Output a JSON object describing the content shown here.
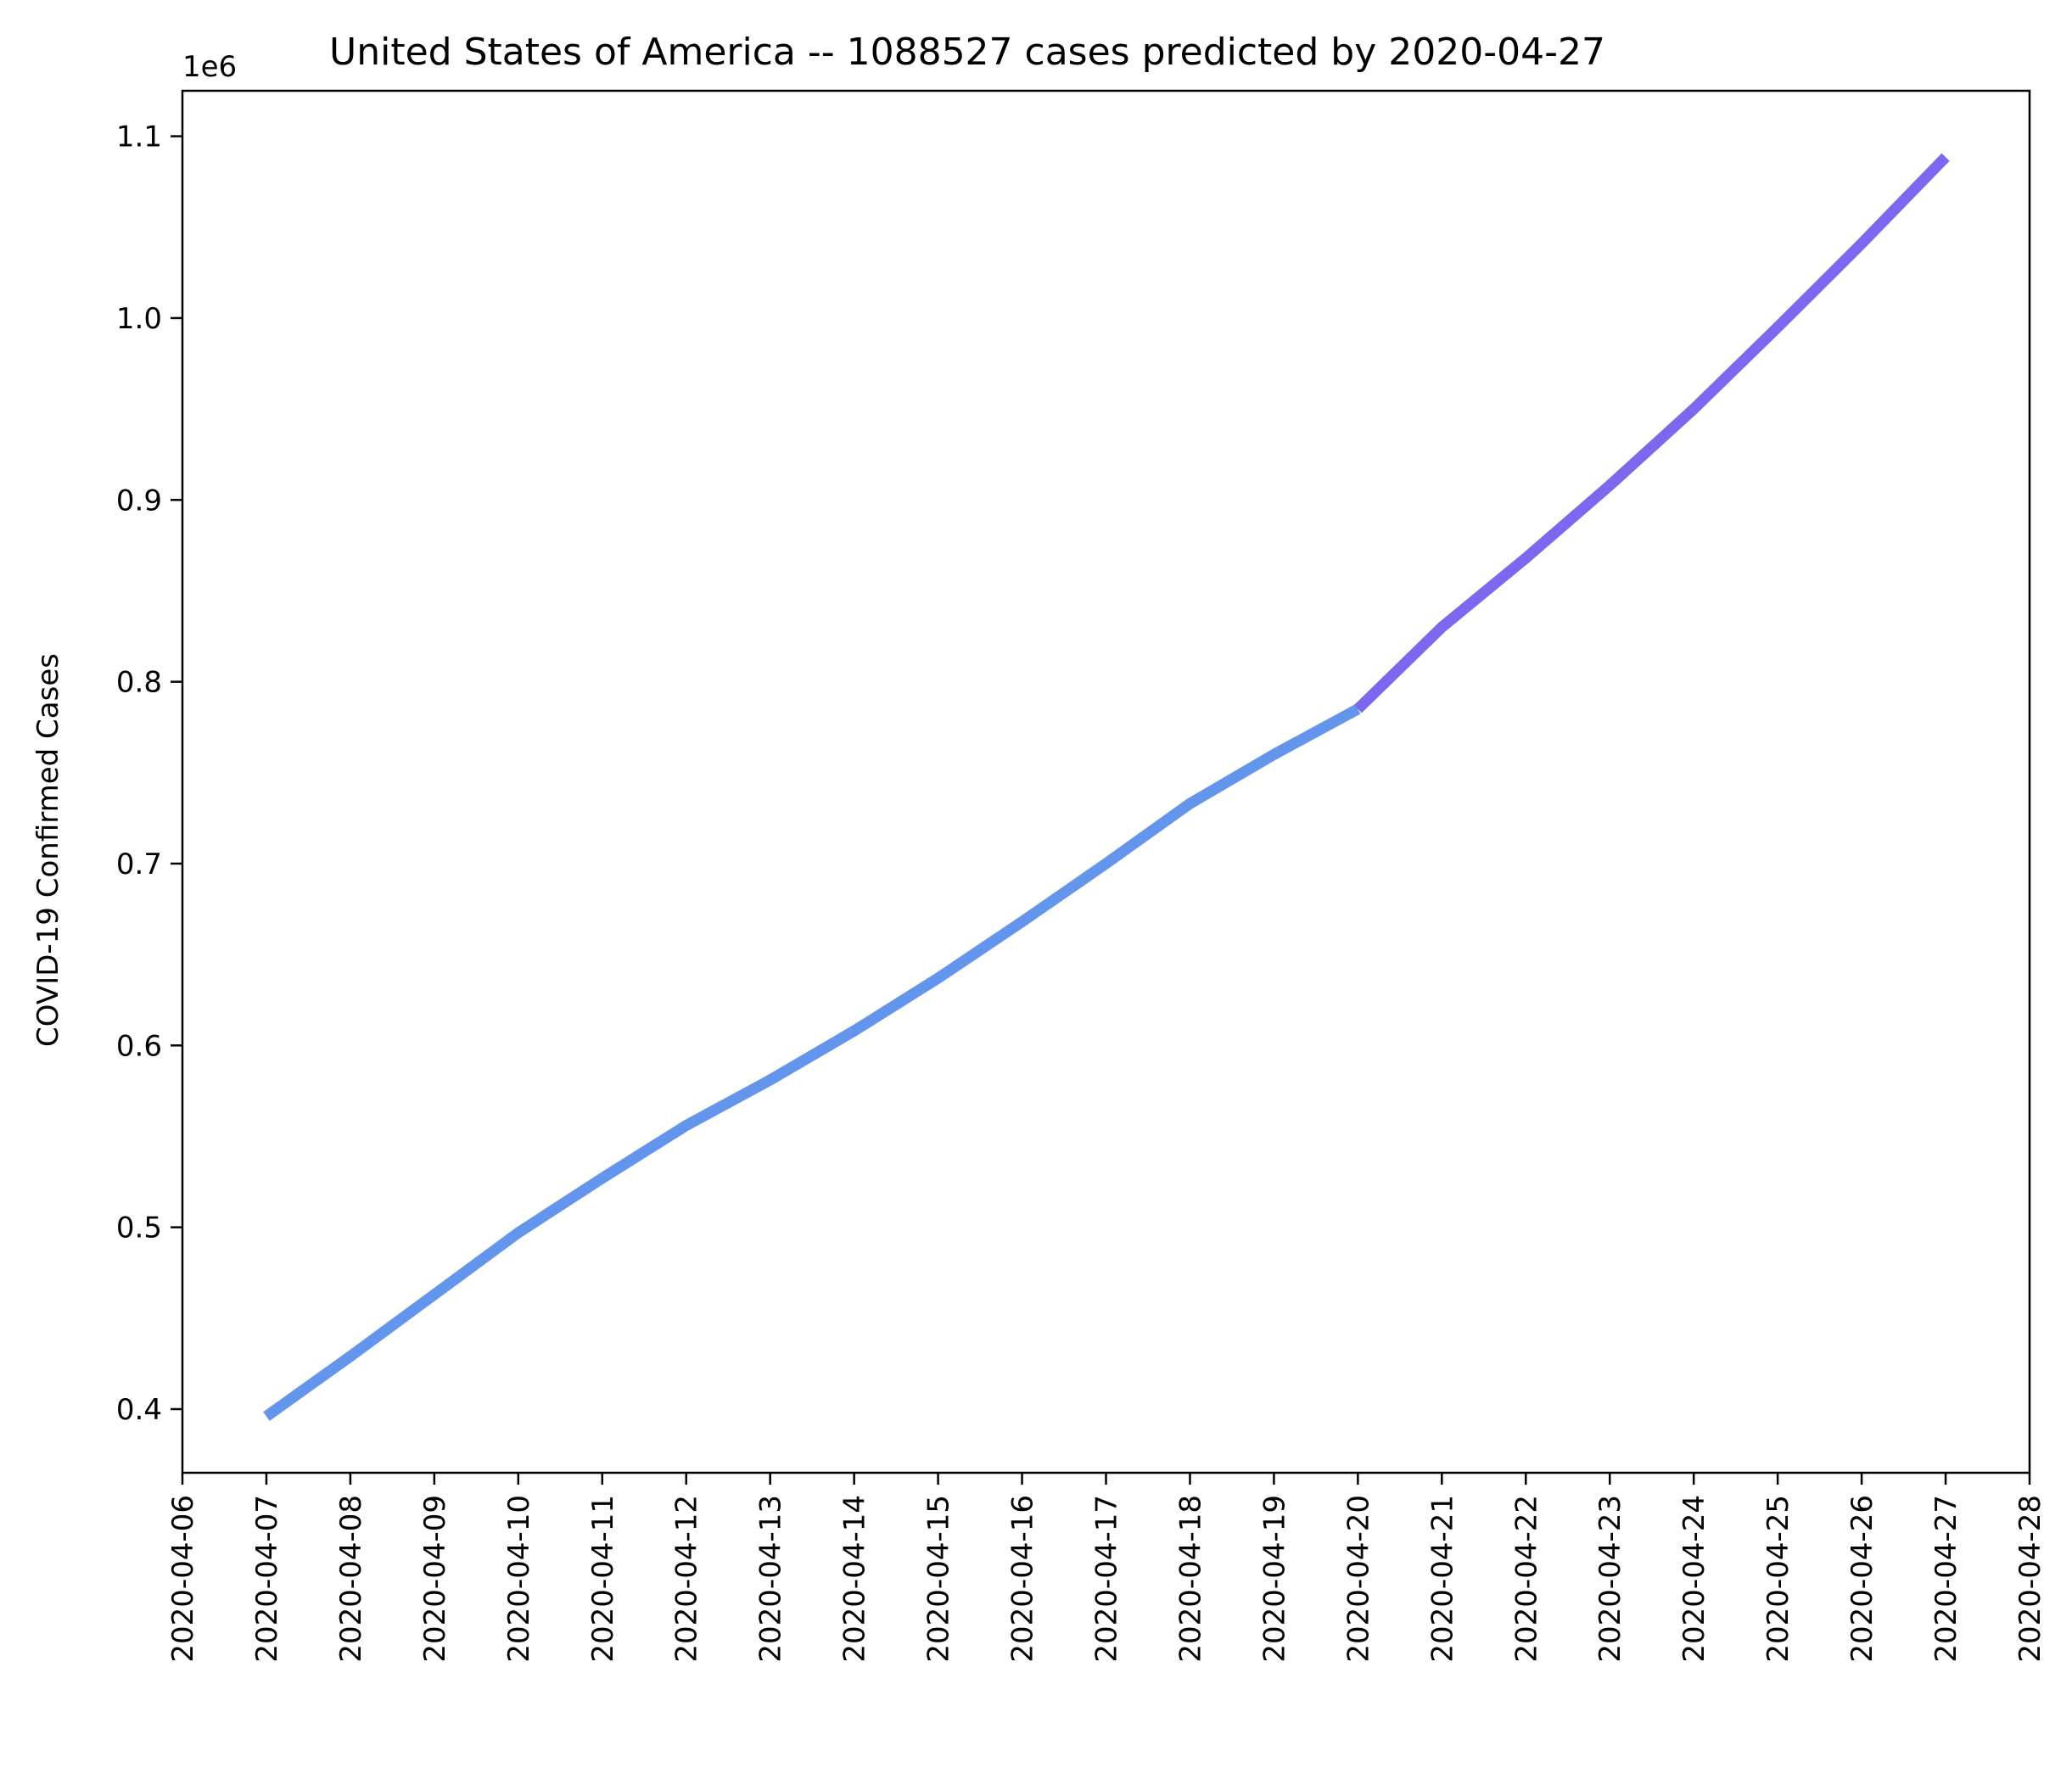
{
  "chart_data": {
    "type": "line",
    "title": "United States of America  --  1088527 cases predicted by 2020-04-27",
    "xlabel": "",
    "ylabel": "COVID-19 Confirmed Cases",
    "y_offset_text": "1e6",
    "x_ticks": [
      "2020-04-06",
      "2020-04-07",
      "2020-04-08",
      "2020-04-09",
      "2020-04-10",
      "2020-04-11",
      "2020-04-12",
      "2020-04-13",
      "2020-04-14",
      "2020-04-15",
      "2020-04-16",
      "2020-04-17",
      "2020-04-18",
      "2020-04-19",
      "2020-04-20",
      "2020-04-21",
      "2020-04-22",
      "2020-04-23",
      "2020-04-24",
      "2020-04-25",
      "2020-04-26",
      "2020-04-27",
      "2020-04-28"
    ],
    "y_ticks": [
      0.4,
      0.5,
      0.6,
      0.7,
      0.8,
      0.9,
      1.0,
      1.1
    ],
    "y_tick_labels": [
      "0.4",
      "0.5",
      "0.6",
      "0.7",
      "0.8",
      "0.9",
      "1.0",
      "1.1"
    ],
    "y_tick_multiplier": 1000000,
    "xlim": [
      "2020-04-06",
      "2020-04-28"
    ],
    "ylim": [
      365000,
      1125000
    ],
    "grid": false,
    "series": [
      {
        "color": "#6495ED",
        "points": [
          [
            "2020-04-07",
            396000
          ],
          [
            "2020-04-08",
            429000
          ],
          [
            "2020-04-09",
            463000
          ],
          [
            "2020-04-10",
            497000
          ],
          [
            "2020-04-11",
            527000
          ],
          [
            "2020-04-12",
            556000
          ],
          [
            "2020-04-13",
            581000
          ],
          [
            "2020-04-14",
            608000
          ],
          [
            "2020-04-15",
            637000
          ],
          [
            "2020-04-16",
            668000
          ],
          [
            "2020-04-17",
            700000
          ],
          [
            "2020-04-18",
            733000
          ],
          [
            "2020-04-19",
            760000
          ],
          [
            "2020-04-20",
            785000
          ]
        ]
      },
      {
        "color": "#7B68EE",
        "points": [
          [
            "2020-04-20",
            785000
          ],
          [
            "2020-04-21",
            830000
          ],
          [
            "2020-04-22",
            868000
          ],
          [
            "2020-04-23",
            908000
          ],
          [
            "2020-04-24",
            950000
          ],
          [
            "2020-04-25",
            995000
          ],
          [
            "2020-04-26",
            1041000
          ],
          [
            "2020-04-27",
            1088527
          ]
        ]
      }
    ]
  }
}
